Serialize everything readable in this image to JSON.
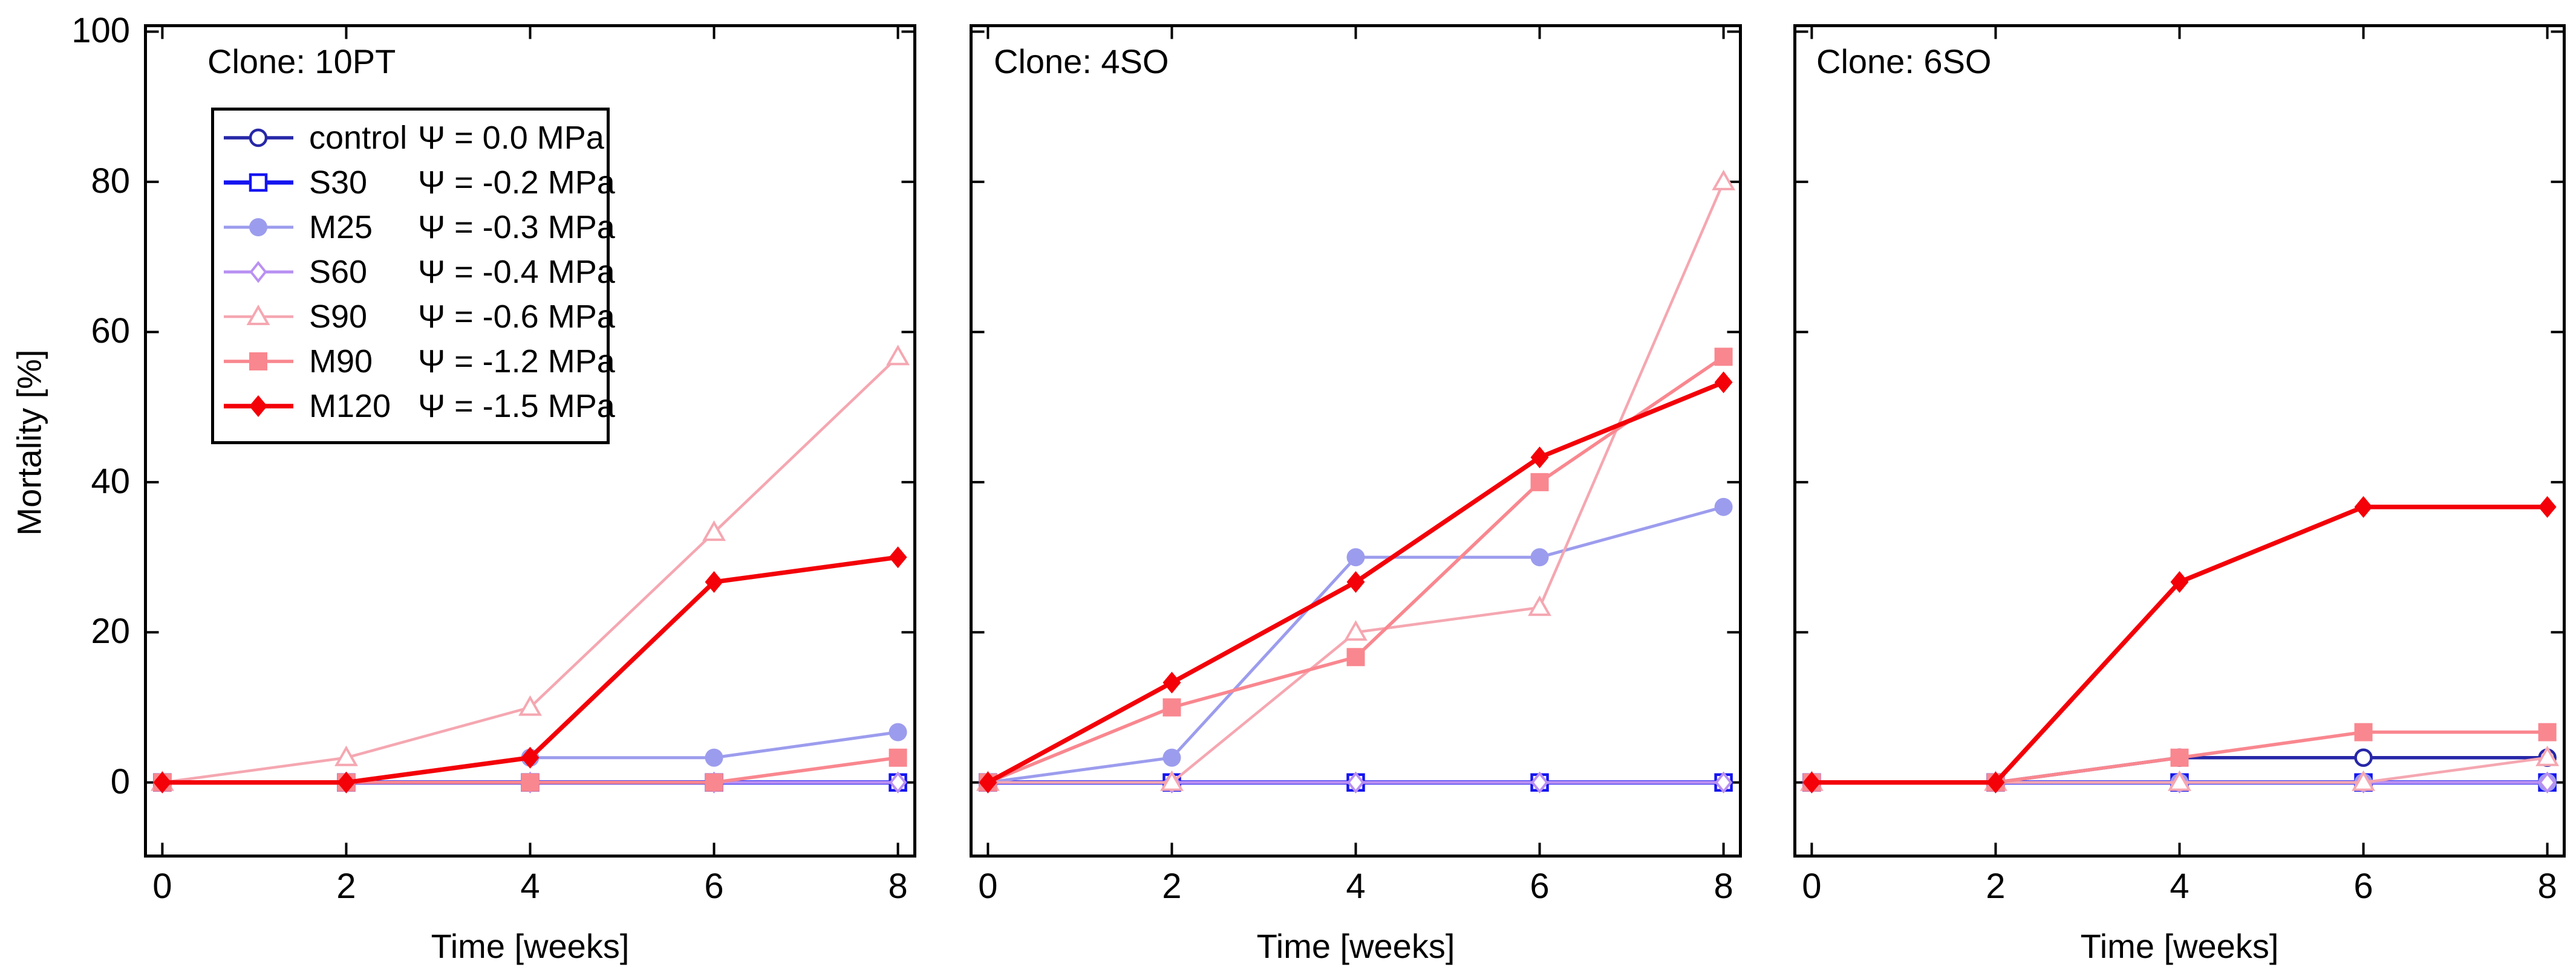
{
  "y_axis": {
    "label": "Mortality [%]",
    "tick_labels": [
      "0",
      "20",
      "40",
      "60",
      "80",
      "100"
    ]
  },
  "x_axis": {
    "label": "Time [weeks]",
    "tick_labels": [
      "0",
      "2",
      "4",
      "6",
      "8"
    ]
  },
  "legend": {
    "position": "upper-left-panel-1",
    "entries": [
      {
        "name": "control",
        "psi_label": "Ψ = 0.0 MPa"
      },
      {
        "name": "S30",
        "psi_label": "Ψ = -0.2 MPa"
      },
      {
        "name": "M25",
        "psi_label": "Ψ = -0.3 MPa"
      },
      {
        "name": "S60",
        "psi_label": "Ψ = -0.4 MPa"
      },
      {
        "name": "S90",
        "psi_label": "Ψ = -0.6 MPa"
      },
      {
        "name": "M90",
        "psi_label": "Ψ = -1.2 MPa"
      },
      {
        "name": "M120",
        "psi_label": "Ψ = -1.5 MPa"
      }
    ]
  },
  "series_styles": [
    {
      "name": "control",
      "color": "#2727a8",
      "marker": "circle-open",
      "line_width": 5.5
    },
    {
      "name": "S30",
      "color": "#1414f0",
      "marker": "square-open",
      "line_width": 7
    },
    {
      "name": "M25",
      "color": "#9c9cee",
      "marker": "circle-filled",
      "line_width": 5
    },
    {
      "name": "S60",
      "color": "#b990f2",
      "marker": "diamond-open",
      "line_width": 5
    },
    {
      "name": "S90",
      "color": "#f5a7b1",
      "marker": "triangle-open",
      "line_width": 4.5
    },
    {
      "name": "M90",
      "color": "#f9878f",
      "marker": "square-filled",
      "line_width": 5.5
    },
    {
      "name": "M120",
      "color": "#f30008",
      "marker": "diamond-filled",
      "line_width": 7.5
    }
  ],
  "chart_data": [
    {
      "type": "line",
      "title": "Clone: 10PT",
      "xlabel": "Time [weeks]",
      "ylabel": "Mortality [%]",
      "x": [
        0,
        2,
        4,
        6,
        8
      ],
      "xticks": [
        0,
        2,
        4,
        6,
        8
      ],
      "yticks": [
        0,
        20,
        40,
        60,
        80,
        100
      ],
      "xlim": [
        -0.2,
        8.2
      ],
      "ylim": [
        -10,
        101
      ],
      "grid": false,
      "series": [
        {
          "name": "control",
          "values": [
            0,
            0,
            0,
            0,
            0
          ]
        },
        {
          "name": "S30",
          "values": [
            0,
            0,
            0,
            0,
            0
          ]
        },
        {
          "name": "M25",
          "values": [
            0,
            0,
            3.3,
            3.3,
            6.7
          ]
        },
        {
          "name": "S60",
          "values": [
            0,
            0,
            0,
            0,
            0
          ]
        },
        {
          "name": "S90",
          "values": [
            0,
            3.3,
            10,
            33.3,
            56.7
          ]
        },
        {
          "name": "M90",
          "values": [
            0,
            0,
            0,
            0,
            3.3
          ]
        },
        {
          "name": "M120",
          "values": [
            0,
            0,
            3.3,
            26.7,
            30
          ]
        }
      ]
    },
    {
      "type": "line",
      "title": "Clone: 4SO",
      "xlabel": "Time [weeks]",
      "ylabel": "Mortality [%]",
      "x": [
        0,
        2,
        4,
        6,
        8
      ],
      "xticks": [
        0,
        2,
        4,
        6,
        8
      ],
      "yticks": [
        0,
        20,
        40,
        60,
        80,
        100
      ],
      "xlim": [
        -0.2,
        8.2
      ],
      "ylim": [
        -10,
        101
      ],
      "grid": false,
      "series": [
        {
          "name": "control",
          "values": [
            0,
            0,
            0,
            0,
            0
          ]
        },
        {
          "name": "S30",
          "values": [
            0,
            0,
            0,
            0,
            0
          ]
        },
        {
          "name": "M25",
          "values": [
            0,
            3.3,
            30,
            30,
            36.7
          ]
        },
        {
          "name": "S60",
          "values": [
            0,
            0,
            0,
            0,
            0
          ]
        },
        {
          "name": "S90",
          "values": [
            0,
            0,
            20,
            23.3,
            80
          ]
        },
        {
          "name": "M90",
          "values": [
            0,
            10,
            16.7,
            40,
            56.7
          ]
        },
        {
          "name": "M120",
          "values": [
            0,
            13.3,
            26.7,
            43.3,
            53.3
          ]
        }
      ]
    },
    {
      "type": "line",
      "title": "Clone: 6SO",
      "xlabel": "Time [weeks]",
      "ylabel": "Mortality [%]",
      "x": [
        0,
        2,
        4,
        6,
        8
      ],
      "xticks": [
        0,
        2,
        4,
        6,
        8
      ],
      "yticks": [
        0,
        20,
        40,
        60,
        80,
        100
      ],
      "xlim": [
        -0.2,
        8.2
      ],
      "ylim": [
        -10,
        101
      ],
      "grid": false,
      "series": [
        {
          "name": "control",
          "values": [
            0,
            0,
            3.3,
            3.3,
            3.3
          ]
        },
        {
          "name": "S30",
          "values": [
            0,
            0,
            0,
            0,
            0
          ]
        },
        {
          "name": "M25",
          "values": [
            0,
            0,
            0,
            0,
            0
          ]
        },
        {
          "name": "S60",
          "values": [
            0,
            0,
            0,
            0,
            0
          ]
        },
        {
          "name": "S90",
          "values": [
            0,
            0,
            0,
            0,
            3.3
          ]
        },
        {
          "name": "M90",
          "values": [
            0,
            0,
            3.3,
            6.7,
            6.7
          ]
        },
        {
          "name": "M120",
          "values": [
            0,
            0,
            26.7,
            36.7,
            36.7
          ]
        }
      ]
    }
  ]
}
